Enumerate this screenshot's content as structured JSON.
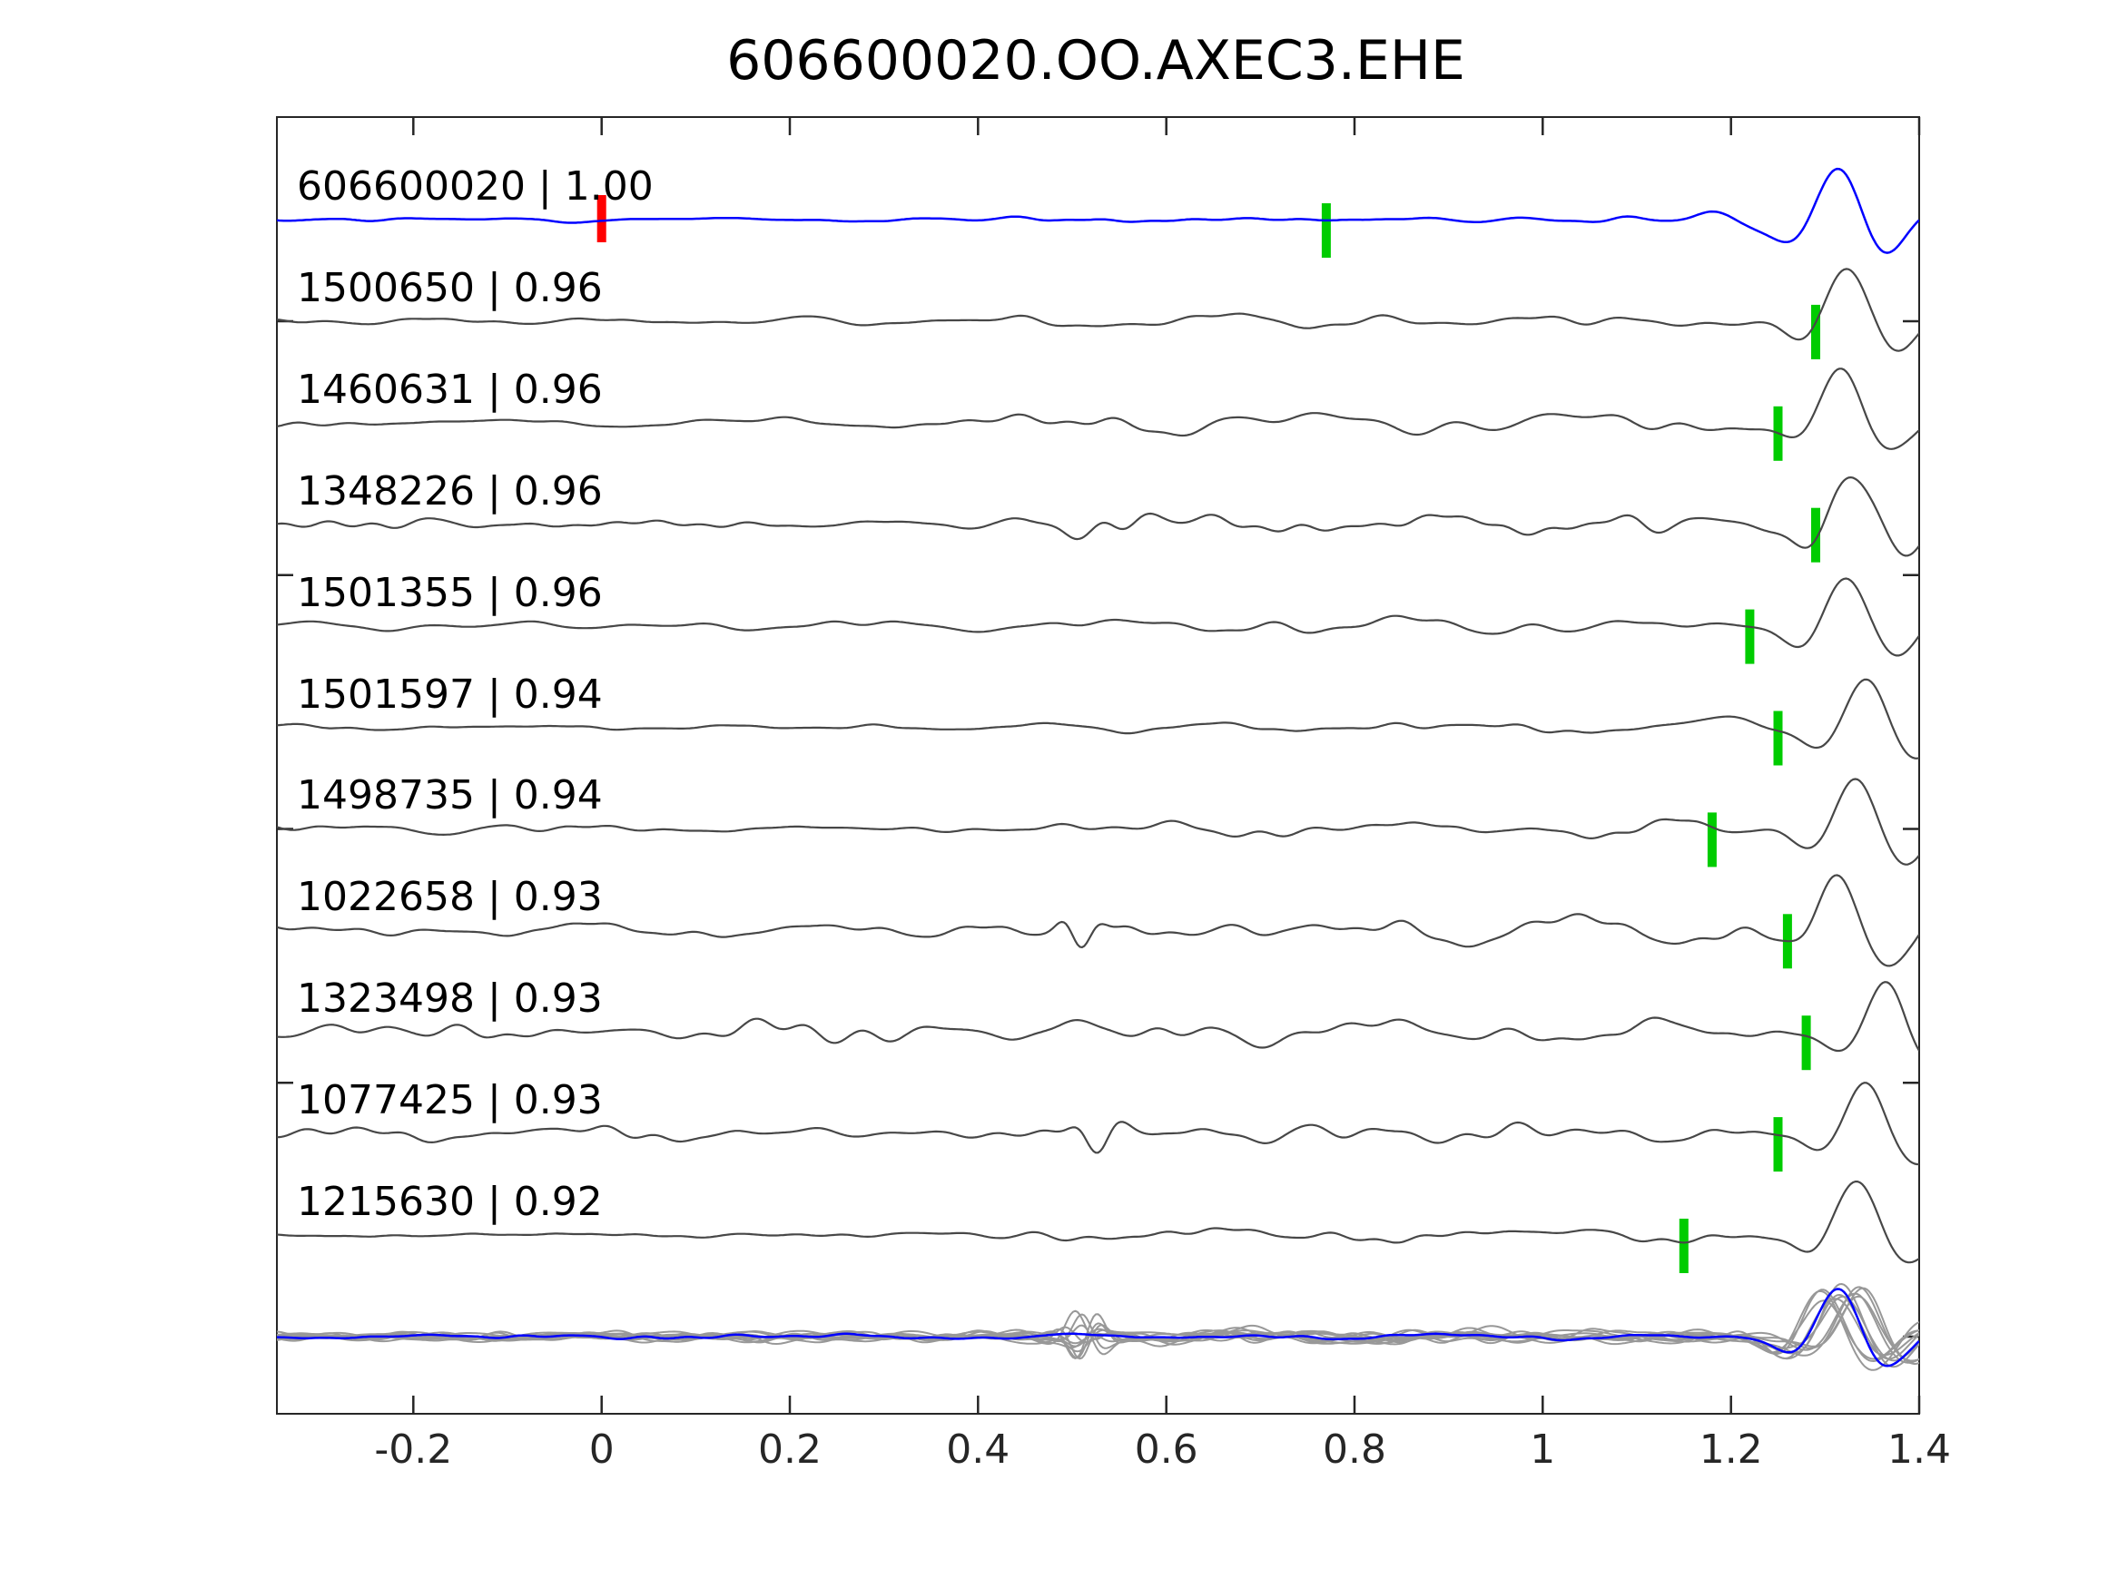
{
  "window": {
    "title": "606600020.OO.AXEC3.EHE"
  },
  "chart_data": {
    "type": "line",
    "subtype": "seismic-waveform-correlation-gather",
    "title": "606600020.OO.AXEC3.EHE",
    "xlim": [
      -0.345,
      1.4
    ],
    "xticks": [
      {
        "value": -0.2,
        "label": "-0.2"
      },
      {
        "value": 0,
        "label": "0"
      },
      {
        "value": 0.2,
        "label": "0.2"
      },
      {
        "value": 0.4,
        "label": "0.4"
      },
      {
        "value": 0.6,
        "label": "0.6"
      },
      {
        "value": 0.8,
        "label": "0.8"
      },
      {
        "value": 1,
        "label": "1"
      },
      {
        "value": 1.2,
        "label": "1.2"
      },
      {
        "value": 1.4,
        "label": "1.4"
      }
    ],
    "yticks_unlabeled": [
      0,
      2.5,
      5,
      7.5,
      10
    ],
    "grid": false,
    "legend": null,
    "colors": {
      "template_trace": "#0000ff",
      "detection_trace": "#474747",
      "stack_gray": "#989898",
      "pick_green": "#00cc00",
      "pick_red": "#ff0000",
      "spine": "#262626",
      "text": "#000000"
    },
    "traces": [
      {
        "id": "606600020",
        "correlation": "1.00",
        "label": "606600020 | 1.00",
        "role": "template",
        "picks": [
          {
            "time": 0.0,
            "color": "red"
          },
          {
            "time": 0.77,
            "color": "green"
          }
        ],
        "wave": {
          "seed": 11,
          "env": [
            [
              -0.35,
              2.2
            ],
            [
              0.42,
              2.2
            ],
            [
              0.47,
              4.5
            ],
            [
              0.62,
              4.5
            ],
            [
              0.75,
              3
            ],
            [
              1.0,
              3.2
            ],
            [
              1.15,
              5
            ],
            [
              1.4,
              4.5
            ]
          ],
          "packets": [
            [
              1.21,
              0.035,
              7,
              9
            ]
          ],
          "arrival_time": 1.315,
          "arrival_amp": 62
        }
      },
      {
        "id": "1500650",
        "correlation": "0.96",
        "label": "1500650 | 0.96",
        "role": "detection",
        "picks": [
          {
            "time": 1.29,
            "color": "green"
          }
        ],
        "wave": {
          "seed": 22,
          "env": [
            [
              -0.35,
              4.5
            ],
            [
              0.42,
              4.5
            ],
            [
              0.5,
              13
            ],
            [
              0.68,
              13
            ],
            [
              0.85,
              10
            ],
            [
              1.1,
              9.5
            ],
            [
              1.25,
              8
            ],
            [
              1.4,
              7
            ]
          ],
          "packets": [],
          "arrival_time": 1.325,
          "arrival_amp": 62
        }
      },
      {
        "id": "1460631",
        "correlation": "0.96",
        "label": "1460631 | 0.96",
        "role": "detection",
        "picks": [
          {
            "time": 1.25,
            "color": "green"
          }
        ],
        "wave": {
          "seed": 33,
          "env": [
            [
              -0.35,
              4.5
            ],
            [
              0.42,
              5
            ],
            [
              0.52,
              12
            ],
            [
              0.68,
              12
            ],
            [
              0.9,
              10
            ],
            [
              1.1,
              10
            ],
            [
              1.25,
              8
            ],
            [
              1.4,
              7
            ]
          ],
          "packets": [],
          "arrival_time": 1.32,
          "arrival_amp": 60
        }
      },
      {
        "id": "1348226",
        "correlation": "0.96",
        "label": "1348226 | 0.96",
        "role": "detection",
        "picks": [
          {
            "time": 1.29,
            "color": "green"
          }
        ],
        "wave": {
          "seed": 44,
          "env": [
            [
              -0.35,
              5.5
            ],
            [
              0.42,
              6
            ],
            [
              0.5,
              13
            ],
            [
              0.62,
              14
            ],
            [
              0.8,
              12
            ],
            [
              1.0,
              11
            ],
            [
              1.2,
              9
            ],
            [
              1.4,
              8
            ]
          ],
          "packets": [
            [
              0.55,
              0.03,
              16,
              10
            ]
          ],
          "arrival_time": 1.33,
          "arrival_amp": 63
        }
      },
      {
        "id": "1501355",
        "correlation": "0.96",
        "label": "1501355 | 0.96",
        "role": "detection",
        "picks": [
          {
            "time": 1.22,
            "color": "green"
          }
        ],
        "wave": {
          "seed": 55,
          "env": [
            [
              -0.35,
              4.5
            ],
            [
              0.42,
              4.5
            ],
            [
              0.52,
              8
            ],
            [
              0.72,
              9
            ],
            [
              0.95,
              10
            ],
            [
              1.15,
              8
            ],
            [
              1.4,
              6
            ]
          ],
          "packets": [],
          "arrival_time": 1.325,
          "arrival_amp": 64
        }
      },
      {
        "id": "1501597",
        "correlation": "0.94",
        "label": "1501597 | 0.94",
        "role": "detection",
        "picks": [
          {
            "time": 1.25,
            "color": "green"
          }
        ],
        "wave": {
          "seed": 66,
          "env": [
            [
              -0.35,
              3.5
            ],
            [
              0.42,
              3.5
            ],
            [
              0.55,
              6
            ],
            [
              0.8,
              6.5
            ],
            [
              1.05,
              7
            ],
            [
              1.4,
              6
            ]
          ],
          "packets": [
            [
              1.19,
              0.05,
              5,
              10
            ]
          ],
          "arrival_time": 1.345,
          "arrival_amp": 64
        }
      },
      {
        "id": "1498735",
        "correlation": "0.94",
        "label": "1498735 | 0.94",
        "role": "detection",
        "picks": [
          {
            "time": 1.18,
            "color": "green"
          }
        ],
        "wave": {
          "seed": 77,
          "env": [
            [
              -0.35,
              4.5
            ],
            [
              0.42,
              4.5
            ],
            [
              0.5,
              11
            ],
            [
              0.64,
              12
            ],
            [
              0.85,
              10
            ],
            [
              1.05,
              10
            ],
            [
              1.2,
              8
            ],
            [
              1.4,
              7
            ]
          ],
          "packets": [],
          "arrival_time": 1.335,
          "arrival_amp": 66
        }
      },
      {
        "id": "1022658",
        "correlation": "0.93",
        "label": "1022658 | 0.93",
        "role": "detection",
        "picks": [
          {
            "time": 1.26,
            "color": "green"
          }
        ],
        "wave": {
          "seed": 88,
          "env": [
            [
              -0.35,
              9
            ],
            [
              0.42,
              9
            ],
            [
              0.48,
              15
            ],
            [
              0.58,
              18
            ],
            [
              0.75,
              16
            ],
            [
              0.95,
              16
            ],
            [
              1.15,
              14
            ],
            [
              1.3,
              11
            ],
            [
              1.4,
              9
            ]
          ],
          "packets": [
            [
              0.507,
              0.018,
              20,
              20
            ]
          ],
          "arrival_time": 1.315,
          "arrival_amp": 66
        }
      },
      {
        "id": "1323498",
        "correlation": "0.93",
        "label": "1323498 | 0.93",
        "role": "detection",
        "picks": [
          {
            "time": 1.28,
            "color": "green"
          }
        ],
        "wave": {
          "seed": 99,
          "env": [
            [
              -0.35,
              11
            ],
            [
              0.42,
              11
            ],
            [
              0.52,
              15
            ],
            [
              0.75,
              15
            ],
            [
              0.95,
              15
            ],
            [
              1.15,
              13
            ],
            [
              1.3,
              11
            ],
            [
              1.4,
              9
            ]
          ],
          "packets": [],
          "arrival_time": 1.365,
          "arrival_amp": 66
        }
      },
      {
        "id": "1077425",
        "correlation": "0.93",
        "label": "1077425 | 0.93",
        "role": "detection",
        "picks": [
          {
            "time": 1.25,
            "color": "green"
          }
        ],
        "wave": {
          "seed": 110,
          "env": [
            [
              -0.35,
              9
            ],
            [
              0.42,
              9
            ],
            [
              0.5,
              14
            ],
            [
              0.64,
              15
            ],
            [
              0.85,
              13
            ],
            [
              1.05,
              12
            ],
            [
              1.25,
              10
            ],
            [
              1.4,
              8
            ]
          ],
          "packets": [
            [
              0.525,
              0.02,
              18,
              16
            ]
          ],
          "arrival_time": 1.345,
          "arrival_amp": 65
        }
      },
      {
        "id": "1215630",
        "correlation": "0.92",
        "label": "1215630 | 0.92",
        "role": "detection",
        "picks": [
          {
            "time": 1.15,
            "color": "green"
          }
        ],
        "wave": {
          "seed": 121,
          "env": [
            [
              -0.35,
              3.5
            ],
            [
              0.42,
              3.5
            ],
            [
              0.47,
              9
            ],
            [
              0.62,
              9
            ],
            [
              0.85,
              7.5
            ],
            [
              1.1,
              7.5
            ],
            [
              1.3,
              6.5
            ],
            [
              1.4,
              6
            ]
          ],
          "packets": [
            [
              0.47,
              0.035,
              9,
              8
            ]
          ],
          "arrival_time": 1.335,
          "arrival_amp": 62
        }
      }
    ],
    "stack_overlay": {
      "description": "all aligned detection traces overlaid in gray with blue template on top",
      "gray_line_count": 11,
      "gray_env": [
        [
          -0.35,
          5.5
        ],
        [
          0.42,
          5.5
        ],
        [
          0.47,
          9
        ],
        [
          0.58,
          9
        ],
        [
          0.75,
          7.5
        ],
        [
          1.25,
          7.5
        ],
        [
          1.4,
          7
        ]
      ],
      "blue": {
        "seed": 300,
        "noise_amp": 3,
        "arrival_time": 1.315,
        "arrival_amp": 60
      }
    }
  }
}
